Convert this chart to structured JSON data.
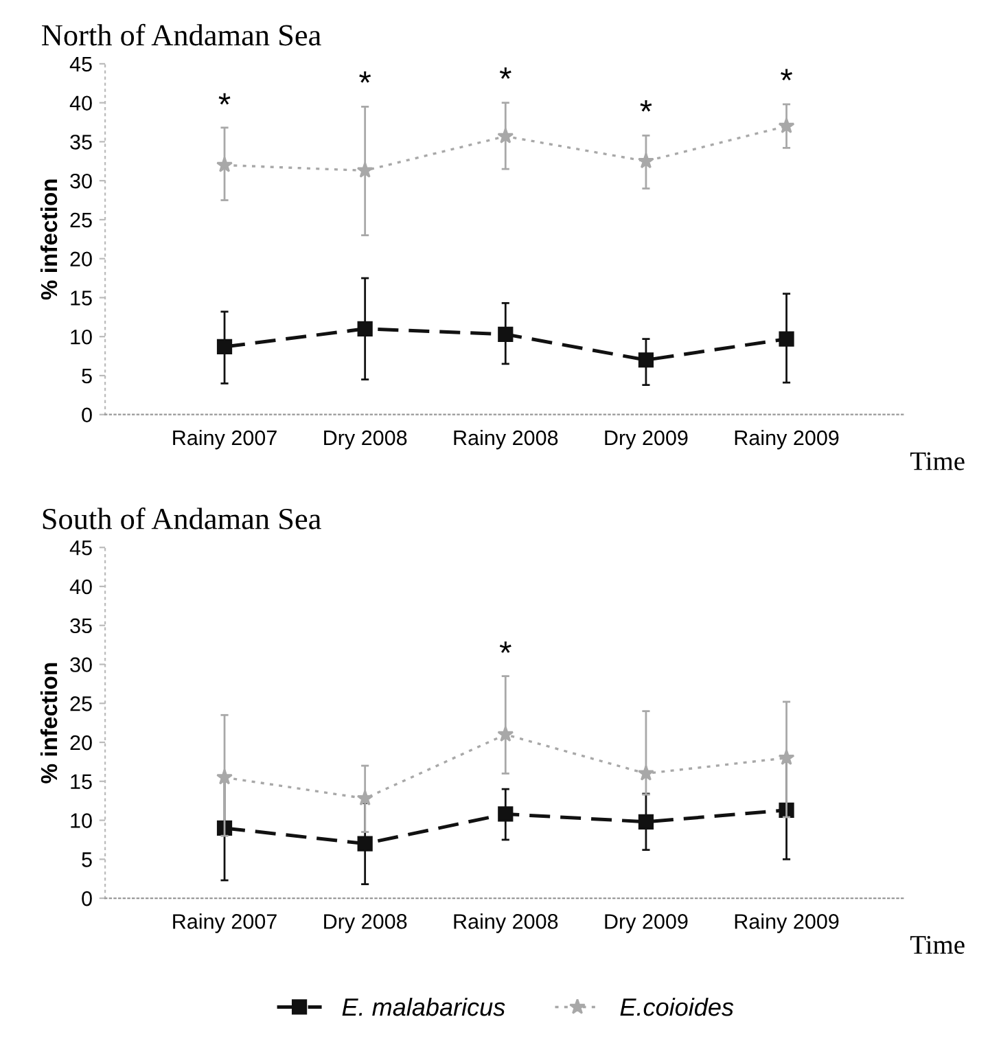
{
  "chart_data": [
    {
      "type": "line",
      "title": "North of Andaman Sea",
      "xlabel": "Time",
      "ylabel": "% infection",
      "categories": [
        "Rainy 2007",
        "Dry 2008",
        "Rainy 2008",
        "Dry 2009",
        "Rainy 2009"
      ],
      "ylim": [
        0,
        45
      ],
      "yticks": [
        0,
        5,
        10,
        15,
        20,
        25,
        30,
        35,
        40,
        45
      ],
      "grid": false,
      "series": [
        {
          "color": "#111111",
          "marker": "square",
          "line_style": "dashed",
          "values": [
            8.7,
            11,
            10.3,
            7,
            9.7
          ],
          "errors": [
            [
              4,
              13.2
            ],
            [
              4.5,
              17.5
            ],
            [
              6.5,
              14.3
            ],
            [
              3.8,
              9.7
            ],
            [
              4.1,
              15.5
            ]
          ]
        },
        {
          "color": "#a8a8a8",
          "marker": "star",
          "line_style": "dotted",
          "values": [
            32,
            31.3,
            35.7,
            32.5,
            37
          ],
          "errors": [
            [
              27.5,
              36.8
            ],
            [
              23,
              39.5
            ],
            [
              31.5,
              40
            ],
            [
              29,
              35.8
            ],
            [
              34.2,
              39.8
            ]
          ]
        }
      ],
      "annotations": [
        {
          "text": "*",
          "x": "Rainy 2007",
          "y": 37.5
        },
        {
          "text": "*",
          "x": "Dry 2008",
          "y": 40.3
        },
        {
          "text": "*",
          "x": "Rainy 2008",
          "y": 40.8
        },
        {
          "text": "*",
          "x": "Dry 2009",
          "y": 36.6
        },
        {
          "text": "*",
          "x": "Rainy 2009",
          "y": 40.6
        }
      ]
    },
    {
      "type": "line",
      "title": "South of Andaman Sea",
      "xlabel": "Time",
      "ylabel": "% infection",
      "categories": [
        "Rainy 2007",
        "Dry 2008",
        "Rainy 2008",
        "Dry 2009",
        "Rainy 2009"
      ],
      "ylim": [
        0,
        45
      ],
      "yticks": [
        0,
        5,
        10,
        15,
        20,
        25,
        30,
        35,
        40,
        45
      ],
      "grid": false,
      "legend": "bottom",
      "series": [
        {
          "name": "E. malabaricus",
          "color": "#111111",
          "marker": "square",
          "line_style": "dashed",
          "values": [
            9,
            7,
            10.8,
            9.8,
            11.3
          ],
          "errors": [
            [
              2.3,
              15.7
            ],
            [
              1.8,
              12.2
            ],
            [
              7.5,
              14
            ],
            [
              6.2,
              13.4
            ],
            [
              5,
              17.6
            ]
          ]
        },
        {
          "name": "E.coioides",
          "color": "#a8a8a8",
          "marker": "star",
          "line_style": "dotted",
          "values": [
            15.5,
            12.8,
            21,
            16,
            18
          ],
          "errors": [
            [
              8,
              23.5
            ],
            [
              8.5,
              17
            ],
            [
              16,
              28.5
            ],
            [
              13.3,
              24
            ],
            [
              10.4,
              25.2
            ]
          ]
        }
      ],
      "annotations": [
        {
          "text": "*",
          "x": "Rainy 2008",
          "y": 29.2
        }
      ]
    }
  ]
}
